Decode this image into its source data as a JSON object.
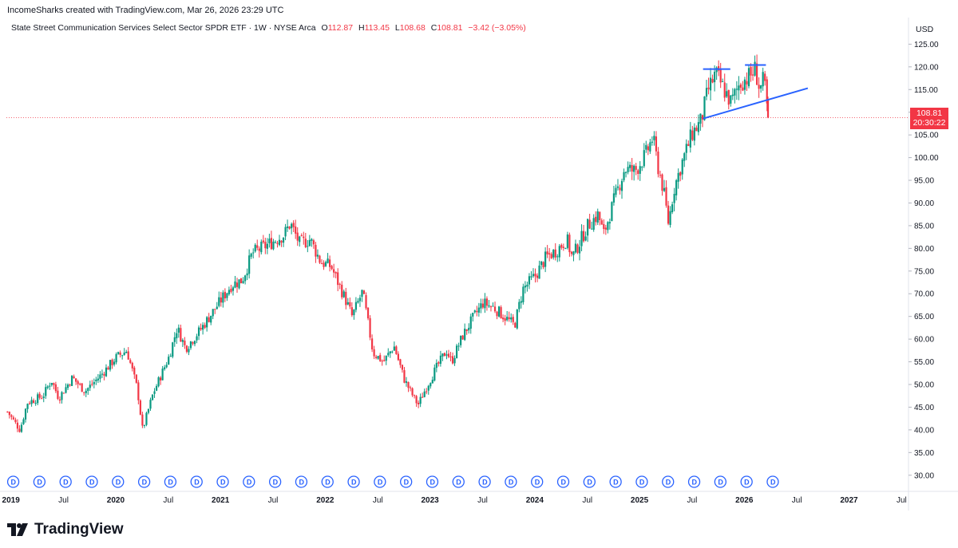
{
  "credit": "IncomeSharks created with TradingView.com, Mar 26, 2026 23:29 UTC",
  "legend": {
    "name": "State Street Communication Services Select Sector SPDR ETF · 1W · NYSE Arca",
    "open_label": "O",
    "open": "112.87",
    "high_label": "H",
    "high": "113.45",
    "low_label": "L",
    "low": "108.68",
    "close_label": "C",
    "close": "108.81",
    "change": "−3.42 (−3.05%)"
  },
  "currency": "USD",
  "last_price": {
    "price": "108.81",
    "countdown": "20:30:22",
    "value": 108.81
  },
  "brand": "TradingView",
  "dividend_badge": "D",
  "colors": {
    "up": "#089981",
    "down": "#f23645",
    "line": "#2962ff",
    "grid": "#e0e3eb"
  },
  "chart_data": {
    "type": "candlestick",
    "title": "State Street Communication Services Select Sector SPDR ETF · 1W · NYSE Arca",
    "y_ticks": [
      "30.00",
      "35.00",
      "40.00",
      "45.00",
      "50.00",
      "55.00",
      "60.00",
      "65.00",
      "70.00",
      "75.00",
      "80.00",
      "85.00",
      "90.00",
      "95.00",
      "100.00",
      "105.00",
      "110.00",
      "115.00",
      "120.00",
      "125.00"
    ],
    "y_tick_values": [
      30,
      35,
      40,
      45,
      50,
      55,
      60,
      65,
      70,
      75,
      80,
      85,
      90,
      95,
      100,
      105,
      110,
      115,
      120,
      125
    ],
    "ylim": [
      27.5,
      127
    ],
    "x_range": [
      2018.95,
      2027.5
    ],
    "x_ticks": [
      {
        "label": "2019",
        "t": 2019.0,
        "year": true
      },
      {
        "label": "Jul",
        "t": 2019.5,
        "year": false
      },
      {
        "label": "2020",
        "t": 2020.0,
        "year": true
      },
      {
        "label": "Jul",
        "t": 2020.5,
        "year": false
      },
      {
        "label": "2021",
        "t": 2021.0,
        "year": true
      },
      {
        "label": "Jul",
        "t": 2021.5,
        "year": false
      },
      {
        "label": "2022",
        "t": 2022.0,
        "year": true
      },
      {
        "label": "Jul",
        "t": 2022.5,
        "year": false
      },
      {
        "label": "2023",
        "t": 2023.0,
        "year": true
      },
      {
        "label": "Jul",
        "t": 2023.5,
        "year": false
      },
      {
        "label": "2024",
        "t": 2024.0,
        "year": true
      },
      {
        "label": "Jul",
        "t": 2024.5,
        "year": false
      },
      {
        "label": "2025",
        "t": 2025.0,
        "year": true
      },
      {
        "label": "Jul",
        "t": 2025.5,
        "year": false
      },
      {
        "label": "2026",
        "t": 2026.0,
        "year": true
      },
      {
        "label": "Jul",
        "t": 2026.5,
        "year": false
      },
      {
        "label": "2027",
        "t": 2027.0,
        "year": true
      },
      {
        "label": "Jul",
        "t": 2027.5,
        "year": false
      }
    ],
    "price_path": [
      [
        2018.96,
        44.0
      ],
      [
        2019.08,
        40.0
      ],
      [
        2019.15,
        46.0
      ],
      [
        2019.3,
        47.5
      ],
      [
        2019.38,
        51.0
      ],
      [
        2019.45,
        47.0
      ],
      [
        2019.58,
        51.5
      ],
      [
        2019.7,
        48.5
      ],
      [
        2019.85,
        52.0
      ],
      [
        2020.0,
        56.0
      ],
      [
        2020.1,
        57.5
      ],
      [
        2020.2,
        49.0
      ],
      [
        2020.25,
        40.0
      ],
      [
        2020.35,
        48.0
      ],
      [
        2020.5,
        56.0
      ],
      [
        2020.58,
        62.5
      ],
      [
        2020.66,
        58.0
      ],
      [
        2020.8,
        62.0
      ],
      [
        2020.95,
        67.0
      ],
      [
        2021.1,
        72.0
      ],
      [
        2021.2,
        73.0
      ],
      [
        2021.3,
        79.0
      ],
      [
        2021.42,
        80.5
      ],
      [
        2021.6,
        83.0
      ],
      [
        2021.66,
        85.5
      ],
      [
        2021.75,
        81.0
      ],
      [
        2021.85,
        82.0
      ],
      [
        2021.95,
        77.0
      ],
      [
        2022.05,
        76.0
      ],
      [
        2022.2,
        68.0
      ],
      [
        2022.25,
        65.0
      ],
      [
        2022.35,
        70.5
      ],
      [
        2022.45,
        57.0
      ],
      [
        2022.55,
        55.0
      ],
      [
        2022.65,
        58.5
      ],
      [
        2022.75,
        51.0
      ],
      [
        2022.83,
        47.5
      ],
      [
        2022.88,
        45.5
      ],
      [
        2022.95,
        49.0
      ],
      [
        2023.05,
        53.5
      ],
      [
        2023.15,
        57.5
      ],
      [
        2023.2,
        55.0
      ],
      [
        2023.3,
        60.5
      ],
      [
        2023.4,
        64.5
      ],
      [
        2023.5,
        68.0
      ],
      [
        2023.6,
        67.0
      ],
      [
        2023.8,
        63.0
      ],
      [
        2023.88,
        71.0
      ],
      [
        2024.0,
        74.0
      ],
      [
        2024.1,
        78.0
      ],
      [
        2024.2,
        79.5
      ],
      [
        2024.3,
        82.0
      ],
      [
        2024.35,
        78.0
      ],
      [
        2024.5,
        85.0
      ],
      [
        2024.6,
        87.5
      ],
      [
        2024.65,
        83.0
      ],
      [
        2024.75,
        90.5
      ],
      [
        2024.85,
        97.5
      ],
      [
        2024.95,
        97.0
      ],
      [
        2025.05,
        100.5
      ],
      [
        2025.12,
        104.5
      ],
      [
        2025.17,
        98.0
      ],
      [
        2025.22,
        93.0
      ],
      [
        2025.27,
        85.5
      ],
      [
        2025.32,
        93.0
      ],
      [
        2025.4,
        99.0
      ],
      [
        2025.5,
        105.5
      ],
      [
        2025.58,
        108.0
      ],
      [
        2025.65,
        115.0
      ],
      [
        2025.72,
        118.5
      ],
      [
        2025.8,
        115.0
      ],
      [
        2025.87,
        112.0
      ],
      [
        2025.95,
        116.5
      ],
      [
        2026.05,
        118.0
      ],
      [
        2026.1,
        119.5
      ],
      [
        2026.14,
        115.0
      ],
      [
        2026.18,
        117.0
      ],
      [
        2026.2,
        113.5
      ],
      [
        2026.22,
        108.81
      ]
    ],
    "annotations": {
      "trendline": [
        [
          2025.6,
          108.6
        ],
        [
          2026.6,
          115.3
        ]
      ],
      "top1": [
        2025.6,
        2025.86,
        119.5
      ],
      "top2": [
        2026.0,
        2026.2,
        120.4
      ]
    },
    "dividend_times": [
      2019.0,
      2019.25,
      2019.5,
      2019.75,
      2020.0,
      2020.25,
      2020.5,
      2020.75,
      2021.0,
      2021.25,
      2021.5,
      2021.75,
      2022.0,
      2022.25,
      2022.5,
      2022.75,
      2023.0,
      2023.25,
      2023.5,
      2023.75,
      2024.0,
      2024.25,
      2024.5,
      2024.75,
      2025.0,
      2025.25,
      2025.5,
      2025.75,
      2026.0,
      2026.25
    ]
  }
}
